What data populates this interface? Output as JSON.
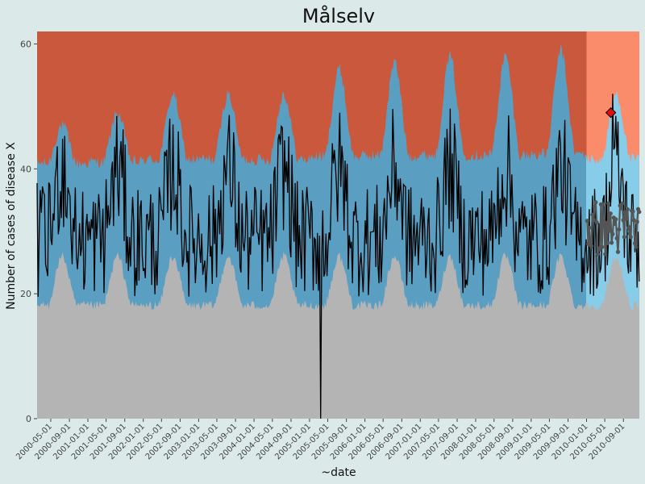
{
  "chart_data": {
    "type": "area",
    "title": "Målselv",
    "xlabel": "~date",
    "ylabel": "Number of cases of disease X",
    "ylim": [
      0,
      62
    ],
    "yticks": [
      0,
      20,
      40,
      60
    ],
    "xlim": [
      "2000-02-01",
      "2010-12-15"
    ],
    "xtick_labels": [
      "2000-05-01",
      "2000-09-01",
      "2001-01-01",
      "2001-05-01",
      "2001-09-01",
      "2002-01-01",
      "2002-05-01",
      "2002-09-01",
      "2003-01-01",
      "2003-05-01",
      "2003-09-01",
      "2004-01-01",
      "2004-05-01",
      "2004-09-01",
      "2005-01-01",
      "2005-05-01",
      "2005-09-01",
      "2006-01-01",
      "2006-05-01",
      "2006-09-01",
      "2007-01-01",
      "2007-05-01",
      "2007-09-01",
      "2008-01-01",
      "2008-05-01",
      "2008-09-01",
      "2009-01-01",
      "2009-05-01",
      "2009-09-01",
      "2010-01-01",
      "2010-05-01",
      "2010-09-01"
    ],
    "split_date": "2010-01-01",
    "bands": {
      "low_zone_color": "#b4b4b4",
      "normal_zone_color": "#5a9ec2",
      "high_zone_color": "#c9583c",
      "normal_zone_color_forecast": "#87cdea",
      "high_zone_color_forecast": "#fa8b6b",
      "base_color": "#afafaf",
      "lower_threshold": {
        "pattern": "seasonal_yearly",
        "trough_month": 3,
        "peak_month": 7,
        "low_value": 17,
        "high_value": 26
      },
      "upper_threshold": {
        "pattern": "seasonal_yearly",
        "trough_month": 3,
        "peak_month": 7,
        "low_value": 40,
        "high_values_by_year": [
          47,
          49,
          52,
          52,
          52,
          56,
          57,
          58,
          58,
          59,
          52
        ]
      }
    },
    "series": [
      {
        "type": "line",
        "color": "#000000",
        "pattern": "weekly",
        "start": "2000-02-01",
        "end": "2010-12-15",
        "low_season_range": [
          18,
          36
        ],
        "high_season_range": [
          30,
          50
        ],
        "notable_points": [
          {
            "date": "2005-03-15",
            "y": 0
          },
          {
            "date": "2010-06-20",
            "y": 52
          }
        ]
      },
      {
        "type": "forecast",
        "color": "#555555",
        "start": "2010-01-01",
        "end": "2010-12-15",
        "range": [
          26,
          35
        ]
      }
    ],
    "outlier": {
      "date": "2010-06-10",
      "y": 49,
      "color": "#e01010",
      "marker": "diamond"
    }
  }
}
